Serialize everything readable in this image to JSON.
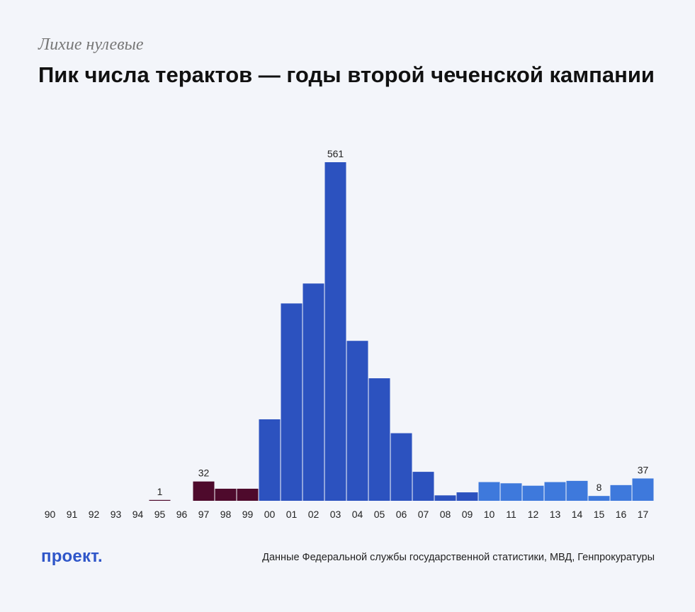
{
  "header": {
    "kicker": "Лихие нулевые",
    "title": "Пик числа терактов — годы второй чеченской кампании"
  },
  "footer": {
    "logo": "проект.",
    "source": "Данные Федеральной службы государственной статистики, МВД, Генпрокуратуры"
  },
  "colors": {
    "background": "#f3f5fa",
    "period_1990s": "#4e0a2c",
    "period_2000s": "#2c52bf",
    "period_2010s": "#3e79dc",
    "logo": "#2f56c9"
  },
  "chart_data": {
    "type": "bar",
    "title": "Пик числа терактов — годы второй чеченской кампании",
    "xlabel": "",
    "ylabel": "",
    "ylim": [
      0,
      600
    ],
    "grid": false,
    "categories": [
      "90",
      "91",
      "92",
      "93",
      "94",
      "95",
      "96",
      "97",
      "98",
      "99",
      "00",
      "01",
      "02",
      "03",
      "04",
      "05",
      "06",
      "07",
      "08",
      "09",
      "10",
      "11",
      "12",
      "13",
      "14",
      "15",
      "16",
      "17"
    ],
    "values": [
      0,
      0,
      0,
      0,
      0,
      1,
      0,
      32,
      20,
      20,
      135,
      327,
      360,
      561,
      265,
      203,
      112,
      48,
      9,
      14,
      31,
      29,
      25,
      31,
      33,
      8,
      26,
      37
    ],
    "groups": [
      "period_1990s",
      "period_1990s",
      "period_1990s",
      "period_1990s",
      "period_1990s",
      "period_1990s",
      "period_1990s",
      "period_1990s",
      "period_1990s",
      "period_1990s",
      "period_2000s",
      "period_2000s",
      "period_2000s",
      "period_2000s",
      "period_2000s",
      "period_2000s",
      "period_2000s",
      "period_2000s",
      "period_2000s",
      "period_2000s",
      "period_2010s",
      "period_2010s",
      "period_2010s",
      "period_2010s",
      "period_2010s",
      "period_2010s",
      "period_2010s",
      "period_2010s"
    ],
    "data_labels": [
      {
        "category": "95",
        "text": "1"
      },
      {
        "category": "97",
        "text": "32"
      },
      {
        "category": "03",
        "text": "561"
      },
      {
        "category": "15",
        "text": "8"
      },
      {
        "category": "17",
        "text": "37"
      }
    ]
  }
}
